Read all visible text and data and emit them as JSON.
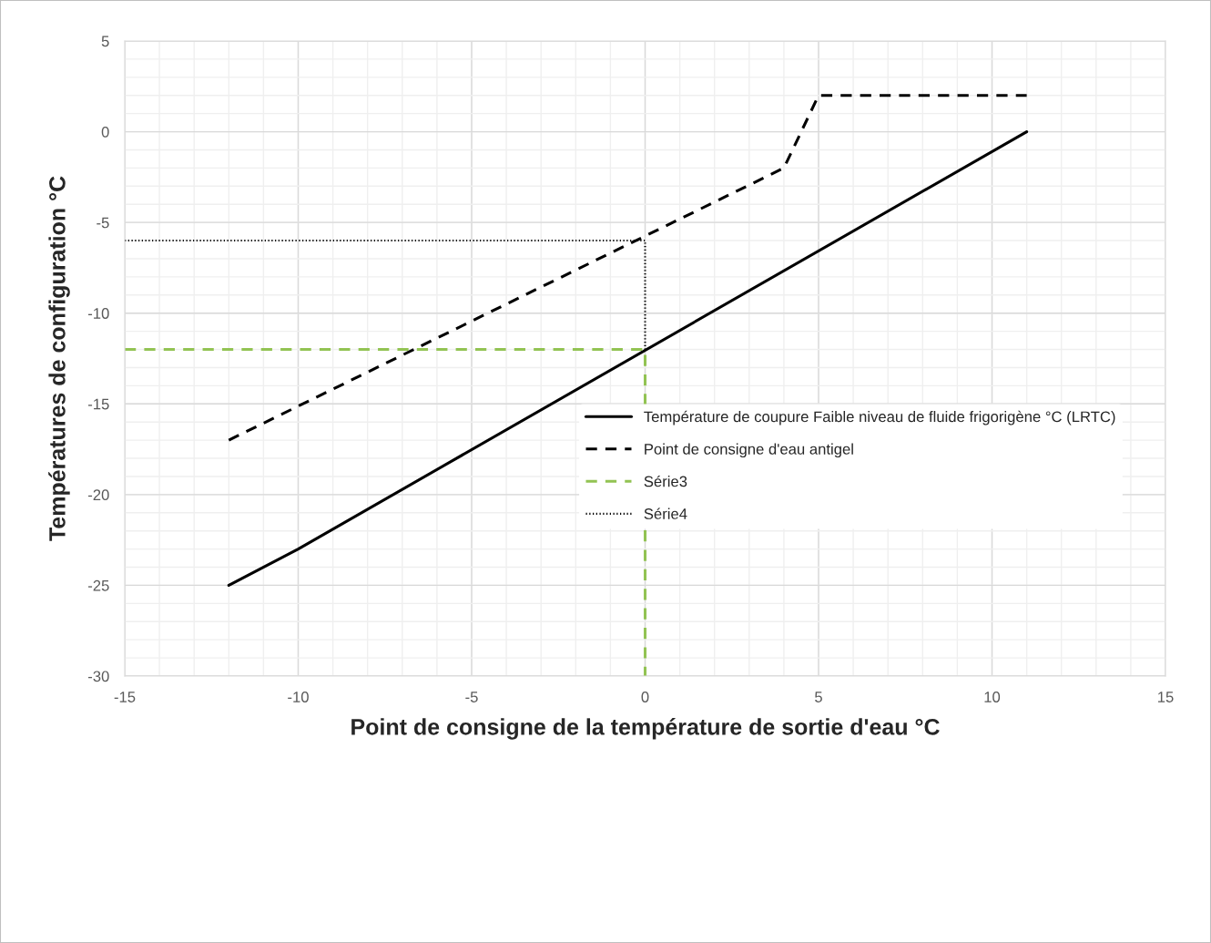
{
  "chart_data": {
    "type": "line",
    "xlabel": "Point de consigne de la température de sortie d'eau °C",
    "ylabel": "Températures de configuration °C",
    "series": [
      {
        "name": "Température de coupure Faible niveau de fluide frigorigène °C (LRTC)",
        "color": "#000000",
        "line_style": "solid",
        "x": [
          -12,
          -10,
          11
        ],
        "values": [
          -25,
          -23,
          0
        ]
      },
      {
        "name": "Point de consigne d'eau antigel",
        "color": "#000000",
        "line_style": "dashed",
        "x": [
          -12,
          4,
          5,
          11
        ],
        "values": [
          -17,
          -2,
          2,
          2
        ]
      },
      {
        "name": "Série3",
        "color": "#92c353",
        "line_style": "dashed",
        "x": [
          -15,
          0,
          0
        ],
        "values": [
          -12,
          -12,
          -30
        ]
      },
      {
        "name": "Série4",
        "color": "#000000",
        "line_style": "dotted",
        "x": [
          -15,
          0,
          0
        ],
        "values": [
          -6,
          -6,
          -12
        ]
      }
    ],
    "xlim": [
      -15,
      15
    ],
    "xticks": [
      -15,
      -10,
      -5,
      0,
      5,
      10,
      15
    ],
    "ylim": [
      -30,
      5
    ],
    "yticks": [
      -30,
      -25,
      -20,
      -15,
      -10,
      -5,
      0,
      5
    ],
    "grid": true,
    "legend": "right",
    "marker": "none"
  }
}
